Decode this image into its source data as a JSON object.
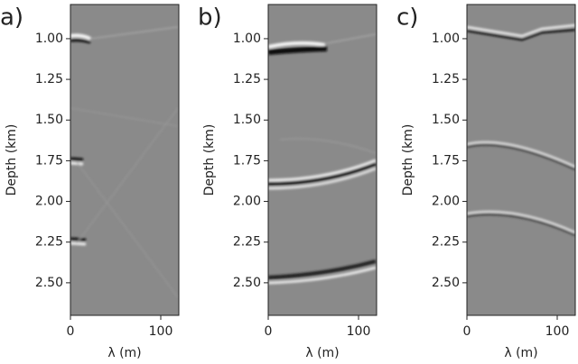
{
  "chart_data": [
    {
      "type": "image",
      "label": "a)",
      "xlabel": "λ (m)",
      "ylabel": "Depth (km)",
      "xlim": [
        0,
        120
      ],
      "ylim": [
        0.79,
        2.7
      ],
      "y_inverted": true,
      "xticks": [
        0,
        100
      ],
      "yticks": [
        {
          "value": 1,
          "label": "1.00"
        },
        {
          "value": 1.25,
          "label": "1.25"
        },
        {
          "value": 1.5,
          "label": "1.50"
        },
        {
          "value": 1.75,
          "label": "1.75"
        },
        {
          "value": 2,
          "label": "2.00"
        },
        {
          "value": 2.25,
          "label": "2.25"
        },
        {
          "value": 2.5,
          "label": "2.50"
        }
      ]
    },
    {
      "type": "image",
      "label": "b)",
      "xlabel": "λ (m)",
      "ylabel": "Depth (km)",
      "xlim": [
        0,
        120
      ],
      "ylim": [
        0.79,
        2.7
      ],
      "y_inverted": true,
      "xticks": [
        0,
        100
      ],
      "yticks": [
        {
          "value": 1,
          "label": "1.00"
        },
        {
          "value": 1.25,
          "label": "1.25"
        },
        {
          "value": 1.5,
          "label": "1.50"
        },
        {
          "value": 1.75,
          "label": "1.75"
        },
        {
          "value": 2,
          "label": "2.00"
        },
        {
          "value": 2.25,
          "label": "2.25"
        },
        {
          "value": 2.5,
          "label": "2.50"
        }
      ]
    },
    {
      "type": "image",
      "label": "c)",
      "xlabel": "λ (m)",
      "ylabel": "Depth (km)",
      "xlim": [
        0,
        120
      ],
      "ylim": [
        0.79,
        2.7
      ],
      "y_inverted": true,
      "xticks": [
        0,
        100
      ],
      "yticks": [
        {
          "value": 1,
          "label": "1.00"
        },
        {
          "value": 1.25,
          "label": "1.25"
        },
        {
          "value": 1.5,
          "label": "1.50"
        },
        {
          "value": 1.75,
          "label": "1.75"
        },
        {
          "value": 2,
          "label": "2.00"
        },
        {
          "value": 2.25,
          "label": "2.25"
        },
        {
          "value": 2.5,
          "label": "2.50"
        }
      ]
    }
  ]
}
